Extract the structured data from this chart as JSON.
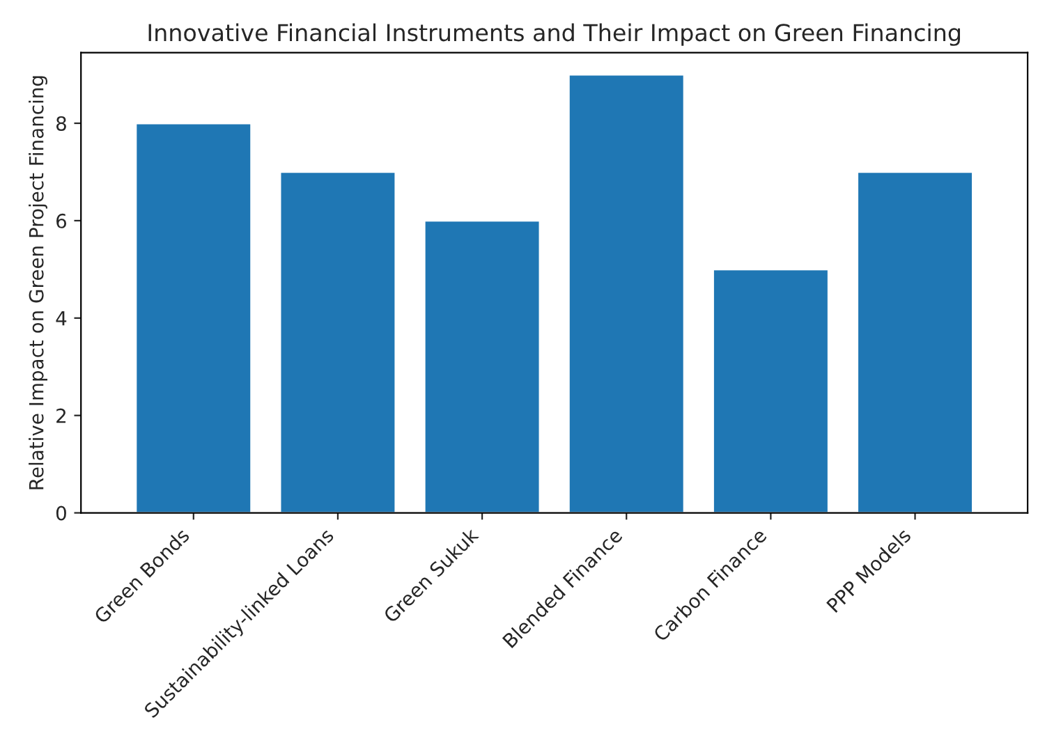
{
  "chart_data": {
    "type": "bar",
    "title": "Innovative Financial Instruments and Their Impact on Green Financing",
    "ylabel": "Relative Impact on Green Project Financing",
    "categories": [
      "Green Bonds",
      "Sustainability-linked Loans",
      "Green Sukuk",
      "Blended Finance",
      "Carbon Finance",
      "PPP Models"
    ],
    "values": [
      8,
      7,
      6,
      9,
      5,
      7
    ],
    "color": "#1f77b4",
    "ylim": [
      0,
      9.45
    ],
    "yticks": [
      0,
      2,
      4,
      6,
      8
    ],
    "grid": false
  }
}
